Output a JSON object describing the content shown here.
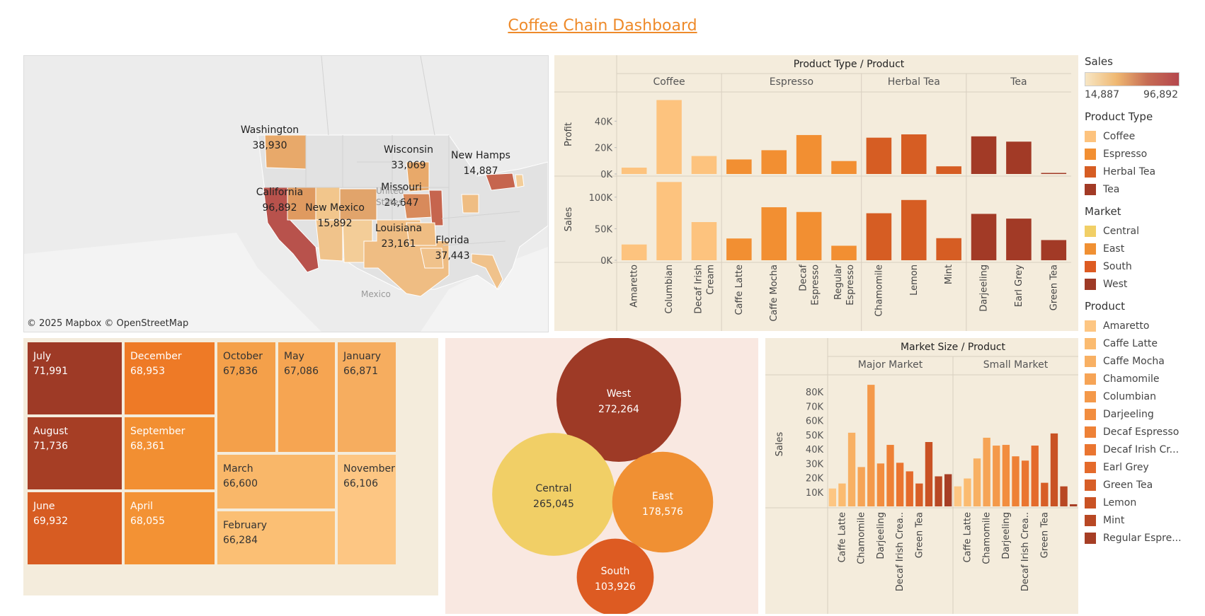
{
  "dashboard": {
    "title": "Coffee Chain Dashboard"
  },
  "colors": {
    "Coffee": "#fdc37e",
    "Espresso": "#f28f32",
    "Herbal Tea": "#d65d23",
    "Tea": "#a23a26",
    "Central": "#f1cf66",
    "East": "#f09033",
    "South": "#dd5b22",
    "West": "#9e3a26",
    "accent": "#ee8a2a"
  },
  "map": {
    "attribution": "© 2025 Mapbox  © OpenStreetMap",
    "labels_land": [
      "United States",
      "Mexico"
    ],
    "states": [
      {
        "name": "Washington",
        "value": "38,930"
      },
      {
        "name": "California",
        "value": "96,892"
      },
      {
        "name": "New Mexico",
        "value": "15,892"
      },
      {
        "name": "Wisconsin",
        "value": "33,069"
      },
      {
        "name": "Missouri",
        "value": "24,647"
      },
      {
        "name": "Louisiana",
        "value": "23,161"
      },
      {
        "name": "Florida",
        "value": "37,443"
      },
      {
        "name": "New Hamps",
        "value": "14,887"
      }
    ]
  },
  "chart_data": [
    {
      "type": "bar",
      "title": "Product Type / Product",
      "groups": [
        "Coffee",
        "Espresso",
        "Herbal Tea",
        "Tea"
      ],
      "categories": [
        "Amaretto",
        "Columbian",
        "Decaf Irish Cream",
        "Caffe Latte",
        "Caffe Mocha",
        "Decaf Espresso",
        "Regular Espresso",
        "Chamomile",
        "Lemon",
        "Mint",
        "Darjeeling",
        "Earl Grey",
        "Green Tea"
      ],
      "category_group": [
        "Coffee",
        "Coffee",
        "Coffee",
        "Espresso",
        "Espresso",
        "Espresso",
        "Espresso",
        "Herbal Tea",
        "Herbal Tea",
        "Herbal Tea",
        "Tea",
        "Tea",
        "Tea"
      ],
      "series": [
        {
          "name": "Profit",
          "values": [
            4800,
            56000,
            13600,
            11000,
            18000,
            29500,
            9800,
            27500,
            30000,
            5800,
            28500,
            24500,
            800
          ],
          "ylim": [
            0,
            60000
          ],
          "ticks": [
            0,
            20000,
            40000
          ],
          "tick_labels": [
            "0K",
            "20K",
            "40K"
          ]
        },
        {
          "name": "Sales",
          "values": [
            25000,
            124000,
            60500,
            34500,
            84000,
            76500,
            23000,
            74500,
            95500,
            35000,
            73500,
            66000,
            32000
          ],
          "ylim": [
            0,
            130000
          ],
          "ticks": [
            0,
            50000,
            100000
          ],
          "tick_labels": [
            "0K",
            "50K",
            "100K"
          ]
        }
      ]
    },
    {
      "type": "treemap",
      "items": [
        {
          "label": "July",
          "value": "71,991",
          "v": 71991
        },
        {
          "label": "August",
          "value": "71,736",
          "v": 71736
        },
        {
          "label": "June",
          "value": "69,932",
          "v": 69932
        },
        {
          "label": "December",
          "value": "68,953",
          "v": 68953
        },
        {
          "label": "September",
          "value": "68,361",
          "v": 68361
        },
        {
          "label": "April",
          "value": "68,055",
          "v": 68055
        },
        {
          "label": "October",
          "value": "67,836",
          "v": 67836
        },
        {
          "label": "May",
          "value": "67,086",
          "v": 67086
        },
        {
          "label": "January",
          "value": "66,871",
          "v": 66871
        },
        {
          "label": "March",
          "value": "66,600",
          "v": 66600
        },
        {
          "label": "November",
          "value": "66,106",
          "v": 66106
        },
        {
          "label": "February",
          "value": "66,284",
          "v": 66284
        }
      ]
    },
    {
      "type": "bubble",
      "items": [
        {
          "label": "West",
          "value": "272,264",
          "v": 272264
        },
        {
          "label": "Central",
          "value": "265,045",
          "v": 265045
        },
        {
          "label": "East",
          "value": "178,576",
          "v": 178576
        },
        {
          "label": "South",
          "value": "103,926",
          "v": 103926
        }
      ]
    },
    {
      "type": "bar",
      "title": "Market Size / Product",
      "ylabel": "Sales",
      "ylim": [
        0,
        90000
      ],
      "ticks": [
        10000,
        20000,
        30000,
        40000,
        50000,
        60000,
        70000,
        80000
      ],
      "tick_labels": [
        "10K",
        "20K",
        "30K",
        "40K",
        "50K",
        "60K",
        "70K",
        "80K"
      ],
      "products": [
        "Amaretto",
        "Caffe Latte",
        "Caffe Mocha",
        "Chamomile",
        "Columbian",
        "Darjeeling",
        "Decaf Espresso",
        "Decaf Irish Cream",
        "Earl Grey",
        "Green Tea",
        "Lemon",
        "Mint",
        "Regular Espresso"
      ],
      "shown_labels": [
        "Caffe Latte",
        "Chamomile",
        "Darjeeling",
        "Decaf Irish Crea..",
        "Green Tea"
      ],
      "shown_label_index": [
        1,
        3,
        5,
        7,
        9
      ],
      "series": [
        {
          "name": "Major Market",
          "values": [
            12500,
            16000,
            51500,
            27500,
            85000,
            30000,
            43000,
            30500,
            24500,
            16000,
            45000,
            21000,
            22500
          ]
        },
        {
          "name": "Small Market",
          "values": [
            14000,
            19500,
            33500,
            48000,
            42500,
            43000,
            35000,
            32000,
            42500,
            16500,
            51000,
            14000,
            1500
          ]
        }
      ]
    }
  ],
  "legend": {
    "sales": {
      "title": "Sales",
      "min": "14,887",
      "max": "96,892"
    },
    "product_type": {
      "title": "Product Type",
      "items": [
        {
          "label": "Coffee",
          "color": "#fdc37e"
        },
        {
          "label": "Espresso",
          "color": "#f28f32"
        },
        {
          "label": "Herbal Tea",
          "color": "#d65d23"
        },
        {
          "label": "Tea",
          "color": "#a23a26"
        }
      ]
    },
    "market": {
      "title": "Market",
      "items": [
        {
          "label": "Central",
          "color": "#f1cf66"
        },
        {
          "label": "East",
          "color": "#f09033"
        },
        {
          "label": "South",
          "color": "#dd5b22"
        },
        {
          "label": "West",
          "color": "#9e3a26"
        }
      ]
    },
    "product": {
      "title": "Product",
      "items": [
        {
          "label": "Amaretto",
          "color": "#fdc683"
        },
        {
          "label": "Caffe Latte",
          "color": "#fbbb70"
        },
        {
          "label": "Caffe Mocha",
          "color": "#f8b063"
        },
        {
          "label": "Chamomile",
          "color": "#f6a456"
        },
        {
          "label": "Columbian",
          "color": "#f4994a"
        },
        {
          "label": "Darjeeling",
          "color": "#f28d3f"
        },
        {
          "label": "Decaf Espresso",
          "color": "#ee8136"
        },
        {
          "label": "Decaf Irish Cr...",
          "color": "#ea7530"
        },
        {
          "label": "Earl Grey",
          "color": "#e46a2b"
        },
        {
          "label": "Green Tea",
          "color": "#d75e27"
        },
        {
          "label": "Lemon",
          "color": "#c95224"
        },
        {
          "label": "Mint",
          "color": "#b84824"
        },
        {
          "label": "Regular Espre...",
          "color": "#a63e25"
        }
      ]
    }
  }
}
